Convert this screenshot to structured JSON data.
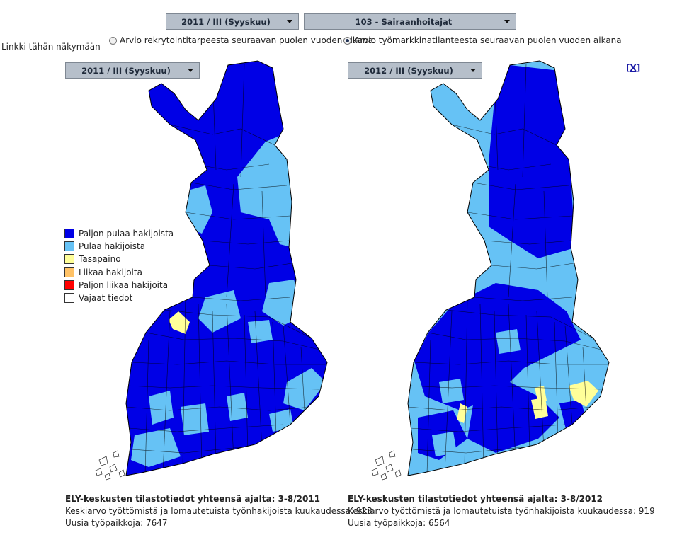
{
  "top_controls": {
    "period_select": "2011 / III (Syyskuu)",
    "occupation_select": "103 - Sairaanhoitajat",
    "link_label": "Linkki tähän näkymään",
    "radio_recruitment": "Arvio rekrytointitarpeesta seuraavan puolen vuoden aikana",
    "radio_labour_market": "Arvio työmarkkinatilanteesta seuraavan puolen vuoden aikana",
    "close_label": "[X]"
  },
  "legend": {
    "items": [
      {
        "label": "Paljon pulaa hakijoista",
        "color": "#0000e6"
      },
      {
        "label": "Pulaa hakijoista",
        "color": "#66c2f5"
      },
      {
        "label": "Tasapaino",
        "color": "#ffff99"
      },
      {
        "label": "Liikaa hakijoita",
        "color": "#ffc266"
      },
      {
        "label": "Paljon liikaa hakijoita",
        "color": "#ff0000"
      },
      {
        "label": "Vajaat tiedot",
        "color": "#ffffff"
      }
    ]
  },
  "colors": {
    "dark_blue": "#0000e6",
    "light_blue": "#66c2f5",
    "yellow": "#ffff99",
    "border": "#000000"
  },
  "maps": [
    {
      "period_select": "2011 / III (Syyskuu)",
      "stats_title": "ELY-keskusten tilastotiedot yhteensä ajalta: 3-8/2011",
      "stats_avg": "Keskiarvo työttömistä ja lomautetuista työnhakijoista kuukaudessa: 923",
      "stats_jobs": "Uusia työpaikkoja: 7647"
    },
    {
      "period_select": "2012 / III (Syyskuu)",
      "stats_title": "ELY-keskusten tilastotiedot yhteensä ajalta: 3-8/2012",
      "stats_avg": "Keskiarvo työttömistä ja lomautetuista työnhakijoista kuukaudessa: 919",
      "stats_jobs": "Uusia työpaikkoja: 6564"
    }
  ]
}
